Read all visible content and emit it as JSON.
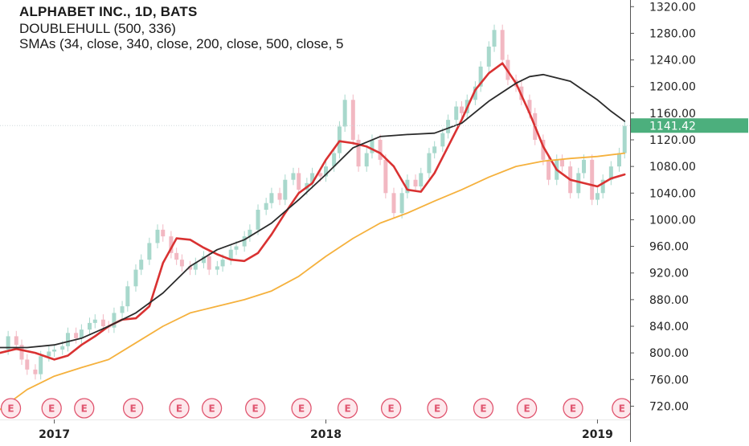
{
  "header": {
    "title": "ALPHABET INC., 1D, BATS",
    "indicator_1": "DOUBLEHULL (500, 336)",
    "indicator_2": "SMAs (34, close, 340, close, 200, close, 500, close, 5"
  },
  "colors": {
    "up_candle": "#a8d8cc",
    "down_candle": "#f2b8c2",
    "fast_line": "#d93232",
    "slow_line": "#2b2b2b",
    "long_line": "#f5b13d",
    "last_price_bg": "#4caf7d",
    "earnings": "#e0556f",
    "axis_line": "#555555"
  },
  "last_price": {
    "label": "1141.42",
    "value": 1141.42
  },
  "earnings_label": "E",
  "chart_data": {
    "type": "line",
    "title": "ALPHABET INC., 1D, BATS",
    "x_unit": "date (years)",
    "xlim": [
      2016.8,
      2019.12
    ],
    "ylim": [
      700,
      1330
    ],
    "y_ticks": [
      720,
      760,
      800,
      840,
      880,
      920,
      960,
      1000,
      1040,
      1080,
      1120,
      1160,
      1200,
      1240,
      1280,
      1320
    ],
    "y_tick_labels": [
      "720.00",
      "760.00",
      "800.00",
      "840.00",
      "880.00",
      "920.00",
      "960.00",
      "1000.00",
      "1040.00",
      "1080.00",
      "1120.00",
      "1160.00",
      "1200.00",
      "1240.00",
      "1280.00",
      "1320.00"
    ],
    "x_ticks": [
      2017,
      2018,
      2019
    ],
    "x_tick_labels": [
      "2017",
      "2018",
      "2019"
    ],
    "earnings_dates": [
      2016.84,
      2016.99,
      2017.11,
      2017.29,
      2017.46,
      2017.58,
      2017.74,
      2017.91,
      2018.08,
      2018.24,
      2018.41,
      2018.58,
      2018.74,
      2018.91,
      2019.09
    ],
    "price": {
      "x": [
        2016.8,
        2016.83,
        2016.86,
        2016.88,
        2016.9,
        2016.93,
        2016.95,
        2016.98,
        2017.0,
        2017.03,
        2017.05,
        2017.08,
        2017.1,
        2017.13,
        2017.15,
        2017.18,
        2017.2,
        2017.22,
        2017.25,
        2017.27,
        2017.3,
        2017.32,
        2017.35,
        2017.38,
        2017.4,
        2017.43,
        2017.45,
        2017.47,
        2017.5,
        2017.52,
        2017.55,
        2017.57,
        2017.6,
        2017.62,
        2017.65,
        2017.67,
        2017.7,
        2017.72,
        2017.75,
        2017.78,
        2017.8,
        2017.83,
        2017.85,
        2017.88,
        2017.9,
        2017.93,
        2017.95,
        2017.98,
        2018.0,
        2018.03,
        2018.05,
        2018.07,
        2018.1,
        2018.12,
        2018.15,
        2018.17,
        2018.2,
        2018.22,
        2018.25,
        2018.28,
        2018.3,
        2018.33,
        2018.35,
        2018.38,
        2018.4,
        2018.43,
        2018.45,
        2018.48,
        2018.5,
        2018.52,
        2018.55,
        2018.57,
        2018.6,
        2018.62,
        2018.65,
        2018.67,
        2018.7,
        2018.72,
        2018.75,
        2018.77,
        2018.8,
        2018.82,
        2018.85,
        2018.87,
        2018.9,
        2018.93,
        2018.95,
        2018.98,
        2019.0,
        2019.02,
        2019.05,
        2019.08,
        2019.1
      ],
      "close": [
        805,
        825,
        812,
        790,
        775,
        768,
        795,
        802,
        805,
        810,
        830,
        822,
        835,
        845,
        850,
        840,
        838,
        860,
        870,
        900,
        925,
        940,
        965,
        985,
        975,
        950,
        940,
        930,
        925,
        935,
        945,
        925,
        930,
        940,
        955,
        960,
        975,
        985,
        1015,
        1025,
        1040,
        1030,
        1060,
        1070,
        1045,
        1055,
        1070,
        1065,
        1080,
        1100,
        1140,
        1180,
        1120,
        1080,
        1100,
        1120,
        1090,
        1040,
        1010,
        1040,
        1060,
        1050,
        1070,
        1100,
        1110,
        1130,
        1150,
        1170,
        1160,
        1180,
        1200,
        1230,
        1260,
        1285,
        1240,
        1210,
        1200,
        1180,
        1160,
        1120,
        1090,
        1060,
        1090,
        1080,
        1040,
        1070,
        1090,
        1030,
        1040,
        1060,
        1080,
        1100,
        1141
      ]
    },
    "series": [
      {
        "name": "",
        "color": "#d93232",
        "x": [
          2016.8,
          2016.86,
          2016.93,
          2017.0,
          2017.05,
          2017.1,
          2017.15,
          2017.2,
          2017.25,
          2017.3,
          2017.35,
          2017.4,
          2017.45,
          2017.5,
          2017.55,
          2017.6,
          2017.65,
          2017.7,
          2017.75,
          2017.8,
          2017.85,
          2017.9,
          2017.95,
          2018.0,
          2018.05,
          2018.1,
          2018.15,
          2018.2,
          2018.25,
          2018.3,
          2018.35,
          2018.4,
          2018.45,
          2018.5,
          2018.55,
          2018.6,
          2018.65,
          2018.7,
          2018.75,
          2018.8,
          2018.85,
          2018.9,
          2018.95,
          2019.0,
          2019.05,
          2019.1
        ],
        "values": [
          800,
          806,
          800,
          790,
          796,
          812,
          825,
          840,
          850,
          852,
          870,
          935,
          972,
          970,
          958,
          948,
          940,
          938,
          950,
          978,
          1010,
          1040,
          1055,
          1090,
          1118,
          1115,
          1110,
          1100,
          1080,
          1045,
          1042,
          1070,
          1110,
          1150,
          1195,
          1220,
          1235,
          1205,
          1160,
          1110,
          1075,
          1060,
          1055,
          1050,
          1062,
          1068
        ]
      },
      {
        "name": "",
        "color": "#2b2b2b",
        "x": [
          2016.8,
          2016.9,
          2017.0,
          2017.1,
          2017.2,
          2017.3,
          2017.4,
          2017.5,
          2017.6,
          2017.7,
          2017.8,
          2017.9,
          2018.0,
          2018.1,
          2018.2,
          2018.3,
          2018.4,
          2018.5,
          2018.6,
          2018.7,
          2018.75,
          2018.8,
          2018.9,
          2019.0,
          2019.05,
          2019.1
        ],
        "values": [
          808,
          808,
          812,
          822,
          840,
          860,
          890,
          930,
          955,
          970,
          995,
          1030,
          1068,
          1108,
          1125,
          1128,
          1130,
          1145,
          1178,
          1205,
          1215,
          1218,
          1208,
          1180,
          1163,
          1148
        ]
      },
      {
        "name": "",
        "color": "#f5b13d",
        "x": [
          2016.8,
          2016.9,
          2017.0,
          2017.1,
          2017.2,
          2017.3,
          2017.4,
          2017.5,
          2017.6,
          2017.7,
          2017.8,
          2017.9,
          2018.0,
          2018.1,
          2018.2,
          2018.3,
          2018.4,
          2018.5,
          2018.6,
          2018.7,
          2018.8,
          2018.9,
          2019.0,
          2019.1
        ],
        "values": [
          715,
          745,
          765,
          778,
          790,
          815,
          840,
          860,
          870,
          880,
          893,
          915,
          945,
          972,
          995,
          1010,
          1028,
          1045,
          1064,
          1080,
          1088,
          1092,
          1095,
          1100
        ]
      }
    ]
  }
}
